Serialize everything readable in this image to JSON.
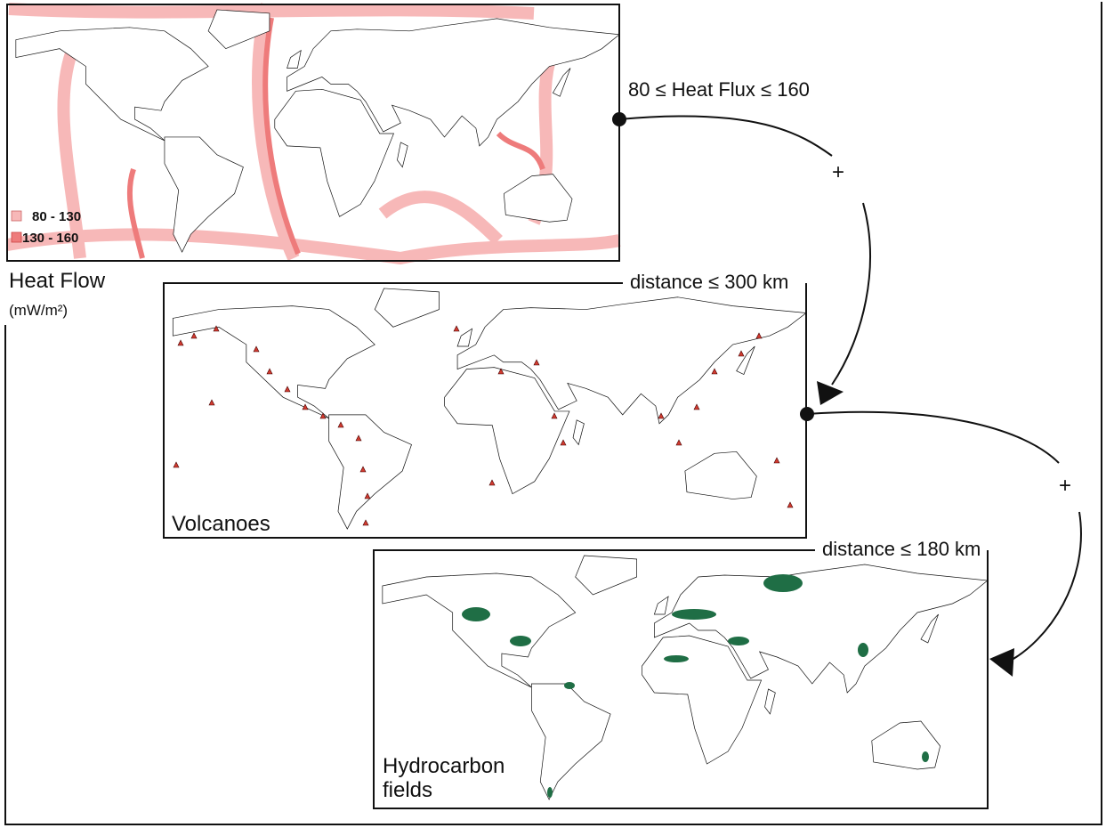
{
  "heat_flow": {
    "label": "Heat Flow",
    "unit": "(mW/m²)",
    "legend": [
      "80 - 130",
      "130 - 160"
    ],
    "condition": "80 ≤ Heat Flux ≤ 160"
  },
  "volcanoes": {
    "label": "Volcanoes",
    "condition": "distance ≤ 300 km"
  },
  "hydrocarbon": {
    "label": [
      "Hydrocarbon",
      "fields"
    ],
    "condition": "distance ≤ 180 km"
  },
  "operators": [
    "+",
    "+"
  ]
}
